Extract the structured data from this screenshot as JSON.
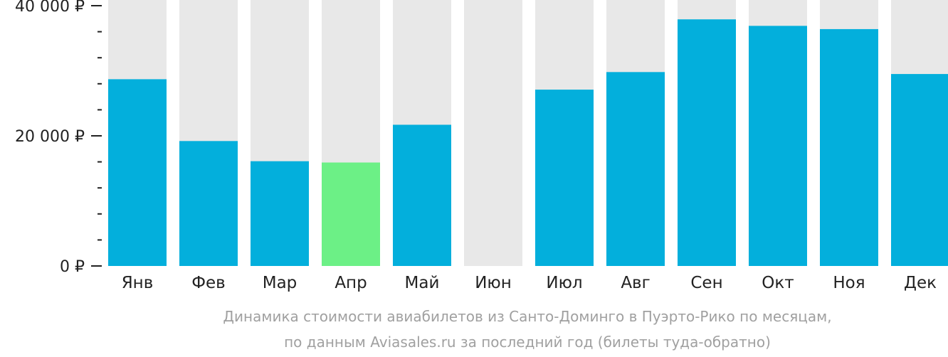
{
  "chart_data": {
    "type": "bar",
    "categories": [
      "Янв",
      "Фев",
      "Мар",
      "Апр",
      "Май",
      "Июн",
      "Июл",
      "Авг",
      "Сен",
      "Окт",
      "Ноя",
      "Дек"
    ],
    "values": [
      28700,
      19200,
      16100,
      15900,
      21700,
      null,
      27100,
      29800,
      37900,
      36900,
      36400,
      29500
    ],
    "ylim": [
      0,
      40000
    ],
    "yticks": [
      {
        "value": 40000,
        "label": "40 000 ₽"
      },
      {
        "value": 20000,
        "label": "20 000 ₽"
      },
      {
        "value": 0,
        "label": "0 ₽"
      }
    ],
    "minor_tick_step": 4000,
    "highlight_index": 3,
    "colors": {
      "bar": "#03afdc",
      "highlight": "#6cf086",
      "background_bar": "#e8e8e8",
      "axis": "#222222"
    },
    "caption_lines": [
      "Динамика стоимости авиабилетов из Санто-Доминго в Пуэрто-Рико по месяцам,",
      "по данным Aviasales.ru за последний год (билеты туда-обратно)"
    ]
  }
}
